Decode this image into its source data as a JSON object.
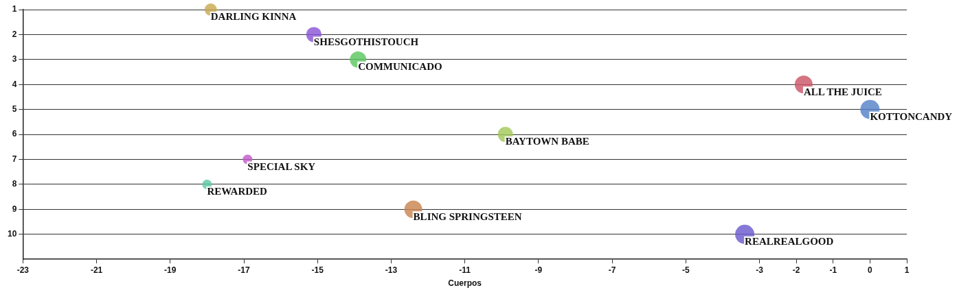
{
  "chart_data": {
    "type": "bubble",
    "xlabel": "Cuerpos",
    "xlim": [
      -23,
      1
    ],
    "xticks": [
      -23,
      -21,
      -19,
      -17,
      -15,
      -13,
      -11,
      -9,
      -7,
      -5,
      -3,
      -2,
      -1,
      0,
      1
    ],
    "ylim": [
      11,
      1
    ],
    "yticks": [
      1,
      2,
      3,
      4,
      5,
      6,
      7,
      8,
      9,
      10
    ],
    "grid": "y",
    "legend": false,
    "series": [
      {
        "name": "DARLING KINNA",
        "color": "#c9a94f",
        "x": [
          -17.9
        ],
        "values": [
          1
        ],
        "sizes": [
          0.41
        ]
      },
      {
        "name": "SHESGOTHISTOUCH",
        "color": "#8b55d6",
        "x": [
          -15.1
        ],
        "values": [
          2
        ],
        "sizes": [
          0.62
        ]
      },
      {
        "name": "COMMUNICADO",
        "color": "#5cc660",
        "x": [
          -13.9
        ],
        "values": [
          3
        ],
        "sizes": [
          0.73
        ]
      },
      {
        "name": "ALL THE JUICE",
        "color": "#cc5566",
        "x": [
          -1.8
        ],
        "values": [
          4
        ],
        "sizes": [
          0.86
        ]
      },
      {
        "name": "KOTTONCANDY",
        "color": "#5582c8",
        "x": [
          0
        ],
        "values": [
          5
        ],
        "sizes": [
          1
        ]
      },
      {
        "name": "BAYTOWN BABE",
        "color": "#a3c85a",
        "x": [
          -9.9
        ],
        "values": [
          6
        ],
        "sizes": [
          0.62
        ]
      },
      {
        "name": "SPECIAL SKY",
        "color": "#c259c9",
        "x": [
          -16.9
        ],
        "values": [
          7
        ],
        "sizes": [
          0.25
        ]
      },
      {
        "name": "REWARDED",
        "color": "#5cc9a3",
        "x": [
          -18
        ],
        "values": [
          8
        ],
        "sizes": [
          0.25
        ]
      },
      {
        "name": "BLING SPRINGSTEEN",
        "color": "#c98550",
        "x": [
          -12.4
        ],
        "values": [
          9
        ],
        "sizes": [
          0.86
        ]
      },
      {
        "name": "REALREALGOOD",
        "color": "#6a5acd",
        "x": [
          -3.4
        ],
        "values": [
          10
        ],
        "sizes": [
          1
        ]
      }
    ]
  }
}
